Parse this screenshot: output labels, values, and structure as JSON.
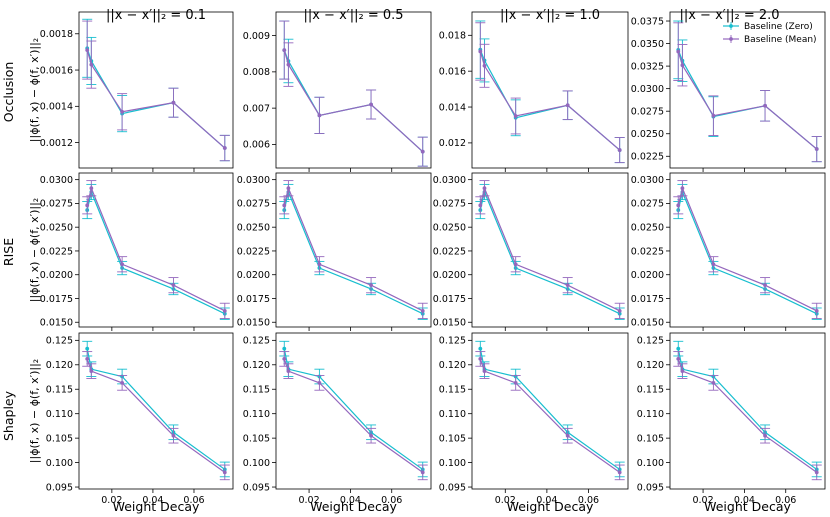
{
  "figure": {
    "col_titles": [
      "||x − x′||₂ = 0.1",
      "||x − x′||₂ = 0.5",
      "||x − x′||₂ = 1.0",
      "||x − x′||₂ = 2.0"
    ],
    "row_labels": [
      "Occlusion",
      "RISE",
      "Shapley"
    ],
    "ylabel": "||ϕ(f, x) − ϕ(f, x′)||₂",
    "xlabel": "Weight Decay",
    "legend": [
      "Baseline (Zero)",
      "Baseline (Mean)"
    ],
    "colors": {
      "zero": "#17becf",
      "mean": "#9467bd"
    }
  },
  "chart_data": [
    {
      "type": "line",
      "row": "Occlusion",
      "title": "||x − x′||₂ = 0.1",
      "xlabel": "",
      "ylabel": "||ϕ(f, x) − ϕ(f, x′)||₂",
      "x": [
        0.008,
        0.01,
        0.025,
        0.05,
        0.075
      ],
      "xticks": [
        0.02,
        0.04,
        0.06
      ],
      "xlim": [
        0.004,
        0.079
      ],
      "ylim": [
        0.00106,
        0.00192
      ],
      "yticks": [
        0.0012,
        0.0014,
        0.0016,
        0.0018
      ],
      "ytick_labels": [
        "0.0012",
        "0.0014",
        "0.0016",
        "0.0018"
      ],
      "legend": false,
      "series": [
        {
          "name": "Baseline (Zero)",
          "values": [
            0.00172,
            0.00165,
            0.00136,
            0.00142,
            0.00117
          ],
          "err": [
            0.00016,
            0.00013,
            0.0001,
            8e-05,
            7e-05
          ]
        },
        {
          "name": "Baseline (Mean)",
          "values": [
            0.00171,
            0.00163,
            0.00137,
            0.00142,
            0.00117
          ],
          "err": [
            0.00016,
            0.00013,
            0.0001,
            8e-05,
            7e-05
          ]
        }
      ]
    },
    {
      "type": "line",
      "row": "Occlusion",
      "title": "||x − x′||₂ = 0.5",
      "xlabel": "",
      "ylabel": "",
      "x": [
        0.008,
        0.01,
        0.025,
        0.05,
        0.075
      ],
      "xticks": [
        0.02,
        0.04,
        0.06
      ],
      "xlim": [
        0.004,
        0.079
      ],
      "ylim": [
        0.00535,
        0.00965
      ],
      "yticks": [
        0.006,
        0.007,
        0.008,
        0.009
      ],
      "ytick_labels": [
        "0.006",
        "0.007",
        "0.008",
        "0.009"
      ],
      "legend": false,
      "series": [
        {
          "name": "Baseline (Zero)",
          "values": [
            0.0086,
            0.0083,
            0.0068,
            0.0071,
            0.0058
          ],
          "err": [
            0.0008,
            0.0006,
            0.0005,
            0.0004,
            0.0004
          ]
        },
        {
          "name": "Baseline (Mean)",
          "values": [
            0.0086,
            0.0082,
            0.0068,
            0.0071,
            0.0058
          ],
          "err": [
            0.0008,
            0.0006,
            0.0005,
            0.0004,
            0.0004
          ]
        }
      ]
    },
    {
      "type": "line",
      "row": "Occlusion",
      "title": "||x − x′||₂ = 1.0",
      "xlabel": "",
      "ylabel": "",
      "x": [
        0.008,
        0.01,
        0.025,
        0.05,
        0.075
      ],
      "xticks": [
        0.02,
        0.04,
        0.06
      ],
      "xlim": [
        0.004,
        0.079
      ],
      "ylim": [
        0.0106,
        0.0193
      ],
      "yticks": [
        0.012,
        0.014,
        0.016,
        0.018
      ],
      "ytick_labels": [
        "0.012",
        "0.014",
        "0.016",
        "0.018"
      ],
      "legend": false,
      "series": [
        {
          "name": "Baseline (Zero)",
          "values": [
            0.0172,
            0.0166,
            0.0134,
            0.0141,
            0.0116
          ],
          "err": [
            0.0016,
            0.0012,
            0.001,
            0.0008,
            0.0007
          ]
        },
        {
          "name": "Baseline (Mean)",
          "values": [
            0.0171,
            0.0163,
            0.0135,
            0.0141,
            0.0116
          ],
          "err": [
            0.0016,
            0.0012,
            0.001,
            0.0008,
            0.0007
          ]
        }
      ]
    },
    {
      "type": "line",
      "row": "Occlusion",
      "title": "||x − x′||₂ = 2.0",
      "xlabel": "",
      "ylabel": "",
      "x": [
        0.008,
        0.01,
        0.025,
        0.05,
        0.075
      ],
      "xticks": [
        0.02,
        0.04,
        0.06
      ],
      "xlim": [
        0.004,
        0.079
      ],
      "ylim": [
        0.0212,
        0.0385
      ],
      "yticks": [
        0.0225,
        0.025,
        0.0275,
        0.03,
        0.0325,
        0.035,
        0.0375
      ],
      "ytick_labels": [
        "0.0225",
        "0.0250",
        "0.0275",
        "0.0300",
        "0.0325",
        "0.0350",
        "0.0375"
      ],
      "legend": true,
      "series": [
        {
          "name": "Baseline (Zero)",
          "values": [
            0.0343,
            0.0331,
            0.0269,
            0.0281,
            0.0233
          ],
          "err": [
            0.0032,
            0.0023,
            0.0022,
            0.0017,
            0.0014
          ]
        },
        {
          "name": "Baseline (Mean)",
          "values": [
            0.0341,
            0.0326,
            0.027,
            0.0281,
            0.0233
          ],
          "err": [
            0.0032,
            0.0023,
            0.0022,
            0.0017,
            0.0014
          ]
        }
      ]
    },
    {
      "type": "line",
      "row": "RISE",
      "title": "",
      "xlabel": "",
      "ylabel": "||ϕ(f, x) − ϕ(f, x′)||₂",
      "x": [
        0.008,
        0.01,
        0.025,
        0.05,
        0.075
      ],
      "xticks": [
        0.02,
        0.04,
        0.06
      ],
      "xlim": [
        0.004,
        0.079
      ],
      "ylim": [
        0.0145,
        0.0307
      ],
      "yticks": [
        0.015,
        0.0175,
        0.02,
        0.0225,
        0.025,
        0.0275,
        0.03
      ],
      "ytick_labels": [
        "0.0150",
        "0.0175",
        "0.0200",
        "0.0225",
        "0.0250",
        "0.0275",
        "0.0300"
      ],
      "legend": false,
      "series": [
        {
          "name": "Baseline (Zero)",
          "values": [
            0.0268,
            0.0287,
            0.0207,
            0.0185,
            0.0159
          ],
          "err": [
            0.0009,
            0.0008,
            0.0007,
            0.0006,
            0.0006
          ]
        },
        {
          "name": "Baseline (Mean)",
          "values": [
            0.0273,
            0.0291,
            0.0211,
            0.0189,
            0.0162
          ],
          "err": [
            0.0009,
            0.0008,
            0.0008,
            0.0008,
            0.0008
          ]
        }
      ]
    },
    {
      "type": "line",
      "row": "RISE",
      "title": "",
      "xlabel": "",
      "ylabel": "",
      "x": [
        0.008,
        0.01,
        0.025,
        0.05,
        0.075
      ],
      "xticks": [
        0.02,
        0.04,
        0.06
      ],
      "xlim": [
        0.004,
        0.079
      ],
      "ylim": [
        0.0145,
        0.0307
      ],
      "yticks": [
        0.015,
        0.0175,
        0.02,
        0.0225,
        0.025,
        0.0275,
        0.03
      ],
      "ytick_labels": [
        "0.0150",
        "0.0175",
        "0.0200",
        "0.0225",
        "0.0250",
        "0.0275",
        "0.0300"
      ],
      "legend": false,
      "series": [
        {
          "name": "Baseline (Zero)",
          "values": [
            0.0268,
            0.0287,
            0.0207,
            0.0185,
            0.0159
          ],
          "err": [
            0.0009,
            0.0008,
            0.0007,
            0.0006,
            0.0006
          ]
        },
        {
          "name": "Baseline (Mean)",
          "values": [
            0.0273,
            0.0291,
            0.0211,
            0.0189,
            0.0162
          ],
          "err": [
            0.0009,
            0.0008,
            0.0008,
            0.0008,
            0.0008
          ]
        }
      ]
    },
    {
      "type": "line",
      "row": "RISE",
      "title": "",
      "xlabel": "",
      "ylabel": "",
      "x": [
        0.008,
        0.01,
        0.025,
        0.05,
        0.075
      ],
      "xticks": [
        0.02,
        0.04,
        0.06
      ],
      "xlim": [
        0.004,
        0.079
      ],
      "ylim": [
        0.0145,
        0.0307
      ],
      "yticks": [
        0.015,
        0.0175,
        0.02,
        0.0225,
        0.025,
        0.0275,
        0.03
      ],
      "ytick_labels": [
        "0.0150",
        "0.0175",
        "0.0200",
        "0.0225",
        "0.0250",
        "0.0275",
        "0.0300"
      ],
      "legend": false,
      "series": [
        {
          "name": "Baseline (Zero)",
          "values": [
            0.0268,
            0.0287,
            0.0207,
            0.0185,
            0.0159
          ],
          "err": [
            0.0009,
            0.0008,
            0.0007,
            0.0006,
            0.0006
          ]
        },
        {
          "name": "Baseline (Mean)",
          "values": [
            0.0273,
            0.0291,
            0.0211,
            0.0189,
            0.0162
          ],
          "err": [
            0.0009,
            0.0008,
            0.0008,
            0.0008,
            0.0008
          ]
        }
      ]
    },
    {
      "type": "line",
      "row": "RISE",
      "title": "",
      "xlabel": "",
      "ylabel": "",
      "x": [
        0.008,
        0.01,
        0.025,
        0.05,
        0.075
      ],
      "xticks": [
        0.02,
        0.04,
        0.06
      ],
      "xlim": [
        0.004,
        0.079
      ],
      "ylim": [
        0.0145,
        0.0307
      ],
      "yticks": [
        0.015,
        0.0175,
        0.02,
        0.0225,
        0.025,
        0.0275,
        0.03
      ],
      "ytick_labels": [
        "0.0150",
        "0.0175",
        "0.0200",
        "0.0225",
        "0.0250",
        "0.0275",
        "0.0300"
      ],
      "legend": false,
      "series": [
        {
          "name": "Baseline (Zero)",
          "values": [
            0.0268,
            0.0287,
            0.0207,
            0.0185,
            0.0159
          ],
          "err": [
            0.0009,
            0.0008,
            0.0007,
            0.0006,
            0.0006
          ]
        },
        {
          "name": "Baseline (Mean)",
          "values": [
            0.0273,
            0.0291,
            0.0211,
            0.0189,
            0.0162
          ],
          "err": [
            0.0009,
            0.0008,
            0.0008,
            0.0008,
            0.0008
          ]
        }
      ]
    },
    {
      "type": "line",
      "row": "Shapley",
      "title": "",
      "xlabel": "Weight Decay",
      "ylabel": "||ϕ(f, x) − ϕ(f, x′)||₂",
      "x": [
        0.008,
        0.01,
        0.025,
        0.05,
        0.075
      ],
      "xticks": [
        0.02,
        0.04,
        0.06
      ],
      "xlim": [
        0.004,
        0.079
      ],
      "ylim": [
        0.0946,
        0.1265
      ],
      "yticks": [
        0.095,
        0.1,
        0.105,
        0.11,
        0.115,
        0.12,
        0.125
      ],
      "ytick_labels": [
        "0.095",
        "0.100",
        "0.105",
        "0.110",
        "0.115",
        "0.120",
        "0.125"
      ],
      "legend": false,
      "series": [
        {
          "name": "Baseline (Zero)",
          "values": [
            0.1233,
            0.1191,
            0.1176,
            0.1062,
            0.0986
          ],
          "err": [
            0.0015,
            0.0015,
            0.0015,
            0.0015,
            0.0015
          ]
        },
        {
          "name": "Baseline (Mean)",
          "values": [
            0.1212,
            0.1187,
            0.1163,
            0.1055,
            0.098
          ],
          "err": [
            0.0015,
            0.0015,
            0.0015,
            0.0015,
            0.0015
          ]
        }
      ]
    },
    {
      "type": "line",
      "row": "Shapley",
      "title": "",
      "xlabel": "Weight Decay",
      "ylabel": "",
      "x": [
        0.008,
        0.01,
        0.025,
        0.05,
        0.075
      ],
      "xticks": [
        0.02,
        0.04,
        0.06
      ],
      "xlim": [
        0.004,
        0.079
      ],
      "ylim": [
        0.0946,
        0.1265
      ],
      "yticks": [
        0.095,
        0.1,
        0.105,
        0.11,
        0.115,
        0.12,
        0.125
      ],
      "ytick_labels": [
        "0.095",
        "0.100",
        "0.105",
        "0.110",
        "0.115",
        "0.120",
        "0.125"
      ],
      "legend": false,
      "series": [
        {
          "name": "Baseline (Zero)",
          "values": [
            0.1233,
            0.1191,
            0.1176,
            0.1062,
            0.0986
          ],
          "err": [
            0.0015,
            0.0015,
            0.0015,
            0.0015,
            0.0015
          ]
        },
        {
          "name": "Baseline (Mean)",
          "values": [
            0.1212,
            0.1187,
            0.1163,
            0.1055,
            0.098
          ],
          "err": [
            0.0015,
            0.0015,
            0.0015,
            0.0015,
            0.0015
          ]
        }
      ]
    },
    {
      "type": "line",
      "row": "Shapley",
      "title": "",
      "xlabel": "Weight Decay",
      "ylabel": "",
      "x": [
        0.008,
        0.01,
        0.025,
        0.05,
        0.075
      ],
      "xticks": [
        0.02,
        0.04,
        0.06
      ],
      "xlim": [
        0.004,
        0.079
      ],
      "ylim": [
        0.0946,
        0.1265
      ],
      "yticks": [
        0.095,
        0.1,
        0.105,
        0.11,
        0.115,
        0.12,
        0.125
      ],
      "ytick_labels": [
        "0.095",
        "0.100",
        "0.105",
        "0.110",
        "0.115",
        "0.120",
        "0.125"
      ],
      "legend": false,
      "series": [
        {
          "name": "Baseline (Zero)",
          "values": [
            0.1233,
            0.1191,
            0.1176,
            0.1062,
            0.0986
          ],
          "err": [
            0.0015,
            0.0015,
            0.0015,
            0.0015,
            0.0015
          ]
        },
        {
          "name": "Baseline (Mean)",
          "values": [
            0.1212,
            0.1187,
            0.1163,
            0.1055,
            0.098
          ],
          "err": [
            0.0015,
            0.0015,
            0.0015,
            0.0015,
            0.0015
          ]
        }
      ]
    },
    {
      "type": "line",
      "row": "Shapley",
      "title": "",
      "xlabel": "Weight Decay",
      "ylabel": "",
      "x": [
        0.008,
        0.01,
        0.025,
        0.05,
        0.075
      ],
      "xticks": [
        0.02,
        0.04,
        0.06
      ],
      "xlim": [
        0.004,
        0.079
      ],
      "ylim": [
        0.0946,
        0.1265
      ],
      "yticks": [
        0.095,
        0.1,
        0.105,
        0.11,
        0.115,
        0.12,
        0.125
      ],
      "ytick_labels": [
        "0.095",
        "0.100",
        "0.105",
        "0.110",
        "0.115",
        "0.120",
        "0.125"
      ],
      "legend": false,
      "series": [
        {
          "name": "Baseline (Zero)",
          "values": [
            0.1233,
            0.1191,
            0.1176,
            0.1062,
            0.0986
          ],
          "err": [
            0.0015,
            0.0015,
            0.0015,
            0.0015,
            0.0015
          ]
        },
        {
          "name": "Baseline (Mean)",
          "values": [
            0.1212,
            0.1187,
            0.1163,
            0.1055,
            0.098
          ],
          "err": [
            0.0015,
            0.0015,
            0.0015,
            0.0015,
            0.0015
          ]
        }
      ]
    }
  ]
}
